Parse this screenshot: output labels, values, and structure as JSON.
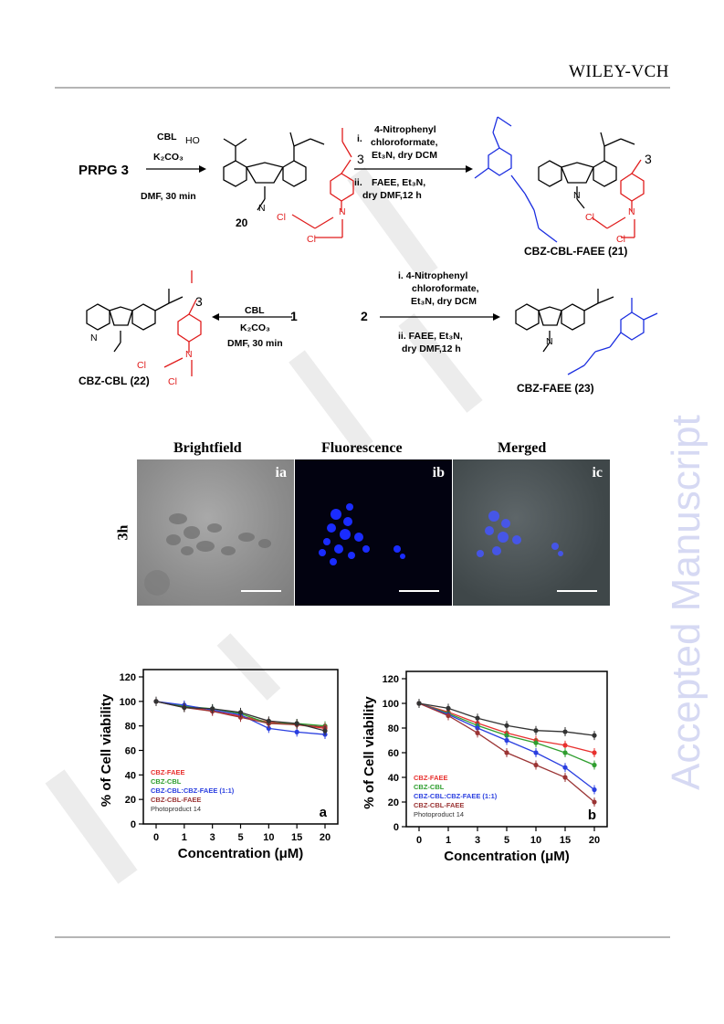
{
  "header": {
    "brand": "WILEY-VCH"
  },
  "watermark": {
    "text": "Accepted Manuscript"
  },
  "scheme": {
    "start": "PRPG 3",
    "step1": {
      "reagent": "CBL",
      "base": "K₂CO₃",
      "cond": "DMF, 30 min"
    },
    "cmpd20": "20",
    "step2": {
      "i_num": "i.",
      "i_line1": "4-Nitrophenyl",
      "i_line2": "chloroformate,",
      "i_line3": "Et₃N, dry DCM",
      "ii_num": "ii.",
      "ii_line1": "FAEE, Et₃N,",
      "ii_line2": "dry DMF,12 h"
    },
    "cmpd21": "CBZ-CBL-FAEE (21)",
    "step3": {
      "reagent": "CBL",
      "base": "K₂CO₃",
      "cond": "DMF, 30 min"
    },
    "num1": "1",
    "num2": "2",
    "step4": {
      "i_line1": "i.  4-Nitrophenyl",
      "i_line2": "chloroformate,",
      "i_line3": "Et₃N, dry DCM",
      "ii_line1": "ii.  FAEE, Et₃N,",
      "ii_line2": "dry DMF,12 h"
    },
    "cmpd22": "CBZ-CBL (22)",
    "cmpd23": "CBZ-FAEE (23)",
    "n3": "3",
    "atoms": {
      "HO": "HO",
      "O": "O",
      "N": "N",
      "Cl": "Cl"
    }
  },
  "micrographs": {
    "row_label": "3h",
    "headers": [
      "Brightfield",
      "Fluorescence",
      "Merged"
    ],
    "tags": [
      "ia",
      "ib",
      "ic"
    ]
  },
  "chart_data": [
    {
      "type": "line",
      "panel_label": "a",
      "xlabel": "Concentration (μM)",
      "ylabel": "% of Cell viability",
      "categories": [
        "0",
        "1",
        "3",
        "5",
        "10",
        "15",
        "20"
      ],
      "ylim": [
        0,
        120
      ],
      "yticks": [
        "0",
        "20",
        "40",
        "60",
        "80",
        "100",
        "120"
      ],
      "series": [
        {
          "name": "CBZ-FAEE",
          "color": "#e8312f",
          "values": [
            100,
            96,
            92,
            88,
            83,
            81,
            78
          ]
        },
        {
          "name": "CBZ-CBL",
          "color": "#2f9e2f",
          "values": [
            100,
            96,
            94,
            90,
            82,
            82,
            80
          ]
        },
        {
          "name": "CBZ-CBL:CBZ-FAEE (1:1)",
          "color": "#2a3fe0",
          "values": [
            100,
            97,
            93,
            89,
            78,
            75,
            73
          ]
        },
        {
          "name": "CBZ-CBL-FAEE",
          "color": "#9b3535",
          "values": [
            100,
            95,
            92,
            87,
            82,
            81,
            79
          ]
        },
        {
          "name": "Photoproduct 14",
          "color": "#333333",
          "values": [
            100,
            95,
            94,
            91,
            84,
            82,
            76
          ]
        }
      ]
    },
    {
      "type": "line",
      "panel_label": "b",
      "xlabel": "Concentration (μM)",
      "ylabel": "% of Cell viability",
      "categories": [
        "0",
        "1",
        "3",
        "5",
        "10",
        "15",
        "20"
      ],
      "ylim": [
        0,
        120
      ],
      "yticks": [
        "0",
        "20",
        "40",
        "60",
        "80",
        "100",
        "120"
      ],
      "series": [
        {
          "name": "CBZ-FAEE",
          "color": "#e8312f",
          "values": [
            100,
            93,
            84,
            76,
            70,
            66,
            60
          ]
        },
        {
          "name": "CBZ-CBL",
          "color": "#2f9e2f",
          "values": [
            100,
            92,
            82,
            74,
            68,
            60,
            50
          ]
        },
        {
          "name": "CBZ-CBL:CBZ-FAEE (1:1)",
          "color": "#2a3fe0",
          "values": [
            100,
            91,
            80,
            70,
            60,
            48,
            30
          ]
        },
        {
          "name": "CBZ-CBL-FAEE",
          "color": "#9b3535",
          "values": [
            100,
            90,
            76,
            60,
            50,
            40,
            20
          ]
        },
        {
          "name": "Photoproduct 14",
          "color": "#333333",
          "values": [
            100,
            96,
            88,
            82,
            78,
            77,
            74
          ]
        }
      ]
    }
  ]
}
